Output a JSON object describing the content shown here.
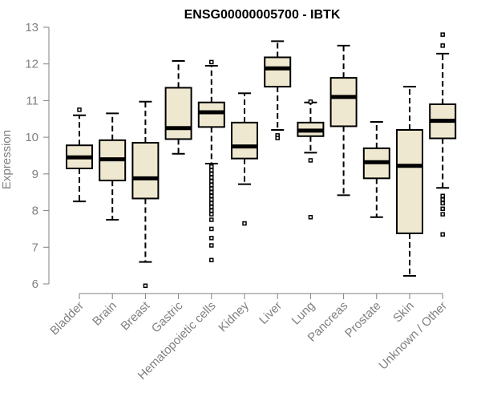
{
  "chart_data": {
    "type": "box",
    "title": "ENSG00000005700 - IBTK",
    "xlabel": "",
    "ylabel": "Expression",
    "ylim": [
      6,
      13
    ],
    "yticks": [
      6,
      7,
      8,
      9,
      10,
      11,
      12,
      13
    ],
    "colors": {
      "box_fill": "#efe8d0",
      "stroke": "#000000",
      "axis": "#808080"
    },
    "boxes": [
      {
        "category": "Bladder",
        "min": 8.25,
        "q1": 9.15,
        "median": 9.45,
        "q3": 9.78,
        "max": 10.6,
        "outliers": [
          10.75
        ]
      },
      {
        "category": "Brain",
        "min": 7.75,
        "q1": 8.82,
        "median": 9.4,
        "q3": 9.92,
        "max": 10.65,
        "outliers": []
      },
      {
        "category": "Breast",
        "min": 6.6,
        "q1": 8.33,
        "median": 8.88,
        "q3": 9.85,
        "max": 10.97,
        "outliers": [
          5.95
        ]
      },
      {
        "category": "Gastric",
        "min": 9.55,
        "q1": 9.95,
        "median": 10.25,
        "q3": 11.35,
        "max": 12.08,
        "outliers": []
      },
      {
        "category": "Hematopoietic cells",
        "min": 9.28,
        "q1": 10.28,
        "median": 10.68,
        "q3": 10.95,
        "max": 11.95,
        "outliers": [
          12.05,
          9.2,
          9.1,
          9.0,
          8.9,
          8.8,
          8.7,
          8.6,
          8.5,
          8.4,
          8.3,
          8.2,
          8.1,
          8.0,
          7.9,
          7.75,
          7.5,
          7.25,
          7.05,
          6.65
        ]
      },
      {
        "category": "Kidney",
        "min": 8.72,
        "q1": 9.42,
        "median": 9.75,
        "q3": 10.4,
        "max": 11.2,
        "outliers": [
          7.65
        ]
      },
      {
        "category": "Liver",
        "min": 10.2,
        "q1": 11.38,
        "median": 11.88,
        "q3": 12.18,
        "max": 12.62,
        "outliers": [
          10.05,
          9.98
        ]
      },
      {
        "category": "Lung",
        "min": 9.58,
        "q1": 10.03,
        "median": 10.18,
        "q3": 10.4,
        "max": 10.95,
        "outliers": [
          10.97,
          9.37,
          7.82
        ]
      },
      {
        "category": "Pancreas",
        "min": 8.42,
        "q1": 10.3,
        "median": 11.1,
        "q3": 11.62,
        "max": 12.5,
        "outliers": []
      },
      {
        "category": "Prostate",
        "min": 7.82,
        "q1": 8.88,
        "median": 9.32,
        "q3": 9.7,
        "max": 10.42,
        "outliers": []
      },
      {
        "category": "Skin",
        "min": 6.22,
        "q1": 7.38,
        "median": 9.22,
        "q3": 10.2,
        "max": 11.38,
        "outliers": []
      },
      {
        "category": "Unknown / Other",
        "min": 8.62,
        "q1": 9.97,
        "median": 10.45,
        "q3": 10.9,
        "max": 12.28,
        "outliers": [
          12.8,
          12.5,
          8.4,
          8.3,
          8.2,
          8.05,
          7.9,
          7.35
        ]
      }
    ]
  }
}
